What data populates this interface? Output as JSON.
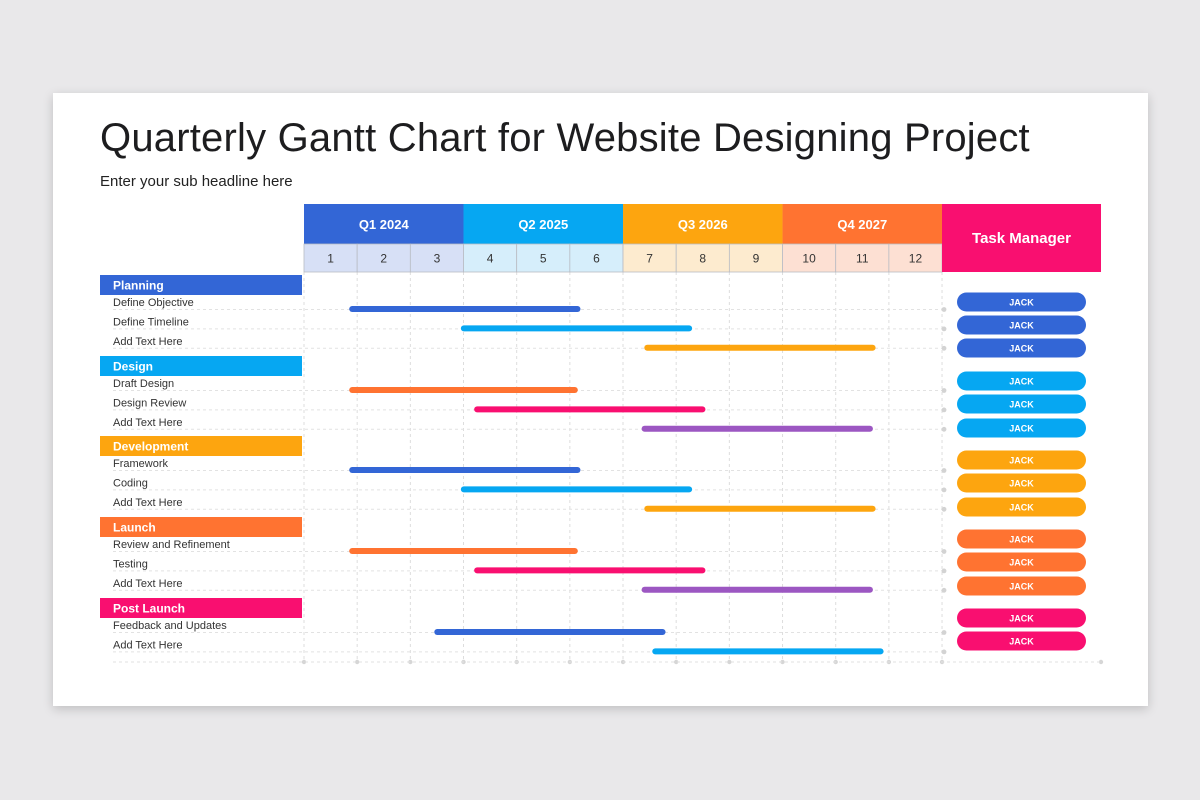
{
  "title": "Quarterly Gantt Chart for Website Designing Project",
  "subtitle": "Enter your sub headline here",
  "chart_data": {
    "type": "gantt",
    "quarters": [
      {
        "label": "Q1 2024",
        "color": "#3366d6",
        "light": "#d7e0f6"
      },
      {
        "label": "Q2 2025",
        "color": "#06a7f2",
        "light": "#d6eefb"
      },
      {
        "label": "Q3 2026",
        "color": "#fda50f",
        "light": "#fdebcf"
      },
      {
        "label": "Q4 2027",
        "color": "#ff7331",
        "light": "#fde0d3"
      }
    ],
    "months": [
      "1",
      "2",
      "3",
      "4",
      "5",
      "6",
      "7",
      "8",
      "9",
      "10",
      "11",
      "12"
    ],
    "task_manager_label": "Task Manager",
    "task_manager_color": "#f90f70",
    "groups": [
      {
        "name": "Planning",
        "color": "#3366d6",
        "tasks": [
          {
            "name": "Define Objective",
            "start": 0.85,
            "end": 5.2,
            "color": "#3366d6",
            "manager": "JACK"
          },
          {
            "name": "Define Timeline",
            "start": 2.95,
            "end": 7.3,
            "color": "#06a7f2",
            "manager": "JACK"
          },
          {
            "name": "Add Text Here",
            "start": 6.4,
            "end": 10.75,
            "color": "#fda50f",
            "manager": "JACK"
          }
        ]
      },
      {
        "name": "Design",
        "color": "#06a7f2",
        "tasks": [
          {
            "name": "Draft Design",
            "start": 0.85,
            "end": 5.15,
            "color": "#ff7331",
            "manager": "JACK"
          },
          {
            "name": "Design Review",
            "start": 3.2,
            "end": 7.55,
            "color": "#f90f70",
            "manager": "JACK"
          },
          {
            "name": "Add Text Here",
            "start": 6.35,
            "end": 10.7,
            "color": "#9c57c2",
            "manager": "JACK"
          }
        ]
      },
      {
        "name": "Development",
        "color": "#fda50f",
        "tasks": [
          {
            "name": "Framework",
            "start": 0.85,
            "end": 5.2,
            "color": "#3366d6",
            "manager": "JACK"
          },
          {
            "name": "Coding",
            "start": 2.95,
            "end": 7.3,
            "color": "#06a7f2",
            "manager": "JACK"
          },
          {
            "name": "Add Text Here",
            "start": 6.4,
            "end": 10.75,
            "color": "#fda50f",
            "manager": "JACK"
          }
        ]
      },
      {
        "name": "Launch",
        "color": "#ff7331",
        "tasks": [
          {
            "name": "Review and Refinement",
            "start": 0.85,
            "end": 5.15,
            "color": "#ff7331",
            "manager": "JACK"
          },
          {
            "name": "Testing",
            "start": 3.2,
            "end": 7.55,
            "color": "#f90f70",
            "manager": "JACK"
          },
          {
            "name": "Add Text Here",
            "start": 6.35,
            "end": 10.7,
            "color": "#9c57c2",
            "manager": "JACK"
          }
        ]
      },
      {
        "name": "Post Launch",
        "color": "#f90f70",
        "tasks": [
          {
            "name": "Feedback and Updates",
            "start": 2.45,
            "end": 6.8,
            "color": "#3366d6",
            "manager": "JACK"
          },
          {
            "name": "Add Text Here",
            "start": 6.55,
            "end": 10.9,
            "color": "#06a7f2",
            "manager": "JACK"
          }
        ]
      }
    ]
  }
}
